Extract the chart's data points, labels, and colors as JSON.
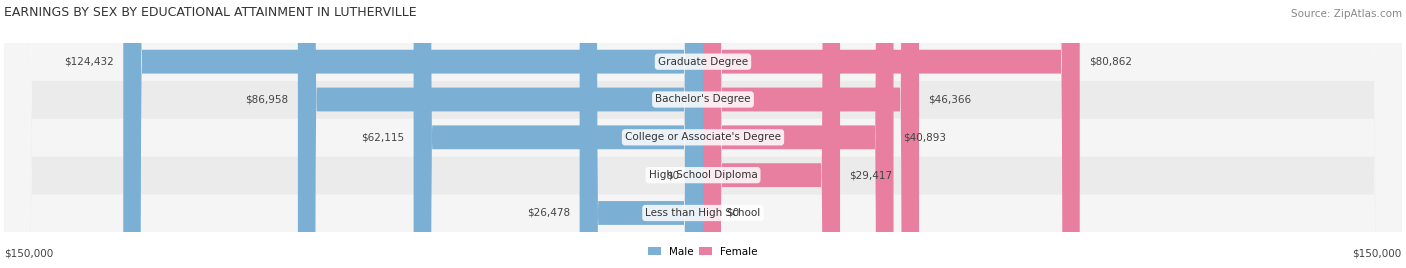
{
  "title": "EARNINGS BY SEX BY EDUCATIONAL ATTAINMENT IN LUTHERVILLE",
  "source": "Source: ZipAtlas.com",
  "categories": [
    "Less than High School",
    "High School Diploma",
    "College or Associate's Degree",
    "Bachelor's Degree",
    "Graduate Degree"
  ],
  "male_values": [
    26478,
    0,
    62115,
    86958,
    124432
  ],
  "female_values": [
    0,
    29417,
    40893,
    46366,
    80862
  ],
  "male_color": "#7bafd4",
  "female_color": "#e87fa0",
  "bar_bg_color": "#e8e8e8",
  "row_bg_colors": [
    "#f0f0f0",
    "#e8e8e8"
  ],
  "max_value": 150000,
  "xlabel_left": "$150,000",
  "xlabel_right": "$150,000",
  "legend_male": "Male",
  "legend_female": "Female",
  "title_fontsize": 9,
  "source_fontsize": 7.5,
  "label_fontsize": 7.5,
  "tick_fontsize": 7.5
}
